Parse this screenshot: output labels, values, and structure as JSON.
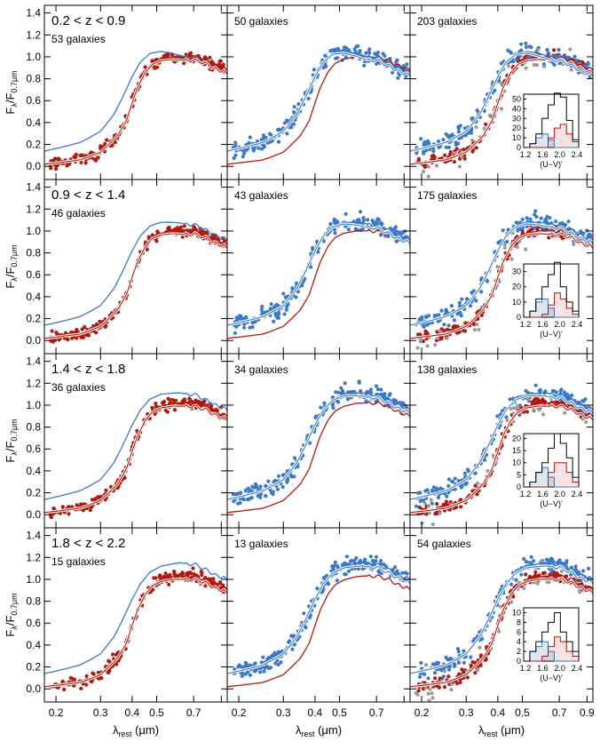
{
  "colors": {
    "red": "#B2180E",
    "blue": "#3A78C9",
    "gray": "#9A9A9A",
    "black": "#000000"
  },
  "chart_data": {
    "type": "scatter",
    "title": "",
    "xlabel": "λ_rest (μm)",
    "ylabel": "F_λ/F_0.7μm",
    "xlabel_parts": {
      "lambda": "λ",
      "sub": "rest",
      "unit": " (μm)"
    },
    "ylabel_parts": {
      "main": "F",
      "sub1": "λ",
      "slash": "/F",
      "sub2": "0.7μm"
    },
    "xlim": [
      0.18,
      0.95
    ],
    "ylim": [
      -0.12,
      1.47
    ],
    "x_ticks": [
      0.2,
      0.3,
      0.4,
      0.5,
      0.7,
      0.9
    ],
    "x_tick_labels": [
      "0.2",
      "0.3",
      "0.4",
      "0.5",
      "0.7",
      "0.9"
    ],
    "x_tick_labels_inner": [
      "0.2",
      "0.3",
      "0.4",
      "0.5",
      "0.7"
    ],
    "y_ticks": [
      0.0,
      0.2,
      0.4,
      0.6,
      0.8,
      1.0,
      1.2,
      1.4
    ],
    "y_tick_labels": [
      "0.0",
      "0.2",
      "0.4",
      "0.6",
      "0.8",
      "1.0",
      "1.2",
      "1.4"
    ],
    "template_red": [
      [
        0.18,
        0.02
      ],
      [
        0.25,
        0.06
      ],
      [
        0.3,
        0.13
      ],
      [
        0.35,
        0.28
      ],
      [
        0.38,
        0.42
      ],
      [
        0.4,
        0.58
      ],
      [
        0.42,
        0.72
      ],
      [
        0.45,
        0.86
      ],
      [
        0.48,
        0.94
      ],
      [
        0.52,
        0.98
      ],
      [
        0.58,
        1.0
      ],
      [
        0.65,
        1.0
      ],
      [
        0.7,
        1.0
      ],
      [
        0.78,
        0.97
      ],
      [
        0.85,
        0.92
      ],
      [
        0.95,
        0.88
      ]
    ],
    "template_blue": [
      [
        0.18,
        0.14
      ],
      [
        0.25,
        0.22
      ],
      [
        0.3,
        0.32
      ],
      [
        0.34,
        0.48
      ],
      [
        0.37,
        0.65
      ],
      [
        0.4,
        0.82
      ],
      [
        0.43,
        0.95
      ],
      [
        0.47,
        1.03
      ],
      [
        0.52,
        1.05
      ],
      [
        0.58,
        1.03
      ],
      [
        0.65,
        1.0
      ],
      [
        0.7,
        1.0
      ],
      [
        0.78,
        0.95
      ],
      [
        0.85,
        0.9
      ],
      [
        0.95,
        0.86
      ]
    ],
    "rows": [
      {
        "z_label": "0.2 < z < 0.9",
        "panels": [
          {
            "label": "53 galaxies",
            "points": [
              "red"
            ],
            "hist": null
          },
          {
            "label": "50 galaxies",
            "points": [
              "blue"
            ],
            "hist": null
          },
          {
            "label": "203 galaxies",
            "points": [
              "red",
              "blue",
              "gray"
            ],
            "hist": {
              "xlabel": "(U−V)'",
              "xticks": [
                "1.2",
                "1.6",
                "2.0",
                "2.4"
              ],
              "yticks": [
                "0",
                "10",
                "20",
                "30",
                "40",
                "50"
              ],
              "ymax": 55,
              "all": [
                0,
                4,
                14,
                30,
                44,
                56,
                52,
                28,
                8
              ],
              "blue": [
                0,
                4,
                10,
                14,
                8,
                0,
                0,
                0,
                0
              ],
              "red": [
                0,
                0,
                0,
                0,
                10,
                20,
                24,
                14,
                6
              ]
            }
          }
        ]
      },
      {
        "z_label": "0.9 < z < 1.4",
        "panels": [
          {
            "label": "46 galaxies",
            "points": [
              "red"
            ],
            "hist": null
          },
          {
            "label": "43 galaxies",
            "points": [
              "blue"
            ],
            "hist": null
          },
          {
            "label": "175 galaxies",
            "points": [
              "red",
              "blue",
              "gray"
            ],
            "hist": {
              "xlabel": "(U−V)'",
              "xticks": [
                "1.2",
                "1.6",
                "2.0",
                "2.4"
              ],
              "yticks": [
                "0",
                "10",
                "20",
                "30"
              ],
              "ymax": 35,
              "all": [
                0,
                4,
                12,
                20,
                28,
                36,
                20,
                10,
                4
              ],
              "blue": [
                0,
                4,
                10,
                12,
                6,
                0,
                0,
                0,
                0
              ],
              "red": [
                0,
                0,
                0,
                2,
                8,
                16,
                12,
                6,
                2
              ]
            }
          }
        ]
      },
      {
        "z_label": "1.4 < z < 1.8",
        "panels": [
          {
            "label": "36 galaxies",
            "points": [
              "red"
            ],
            "hist": null
          },
          {
            "label": "34 galaxies",
            "points": [
              "blue"
            ],
            "hist": null
          },
          {
            "label": "138 galaxies",
            "points": [
              "red",
              "blue",
              "gray"
            ],
            "hist": {
              "xlabel": "(U−V)'",
              "xticks": [
                "1.2",
                "1.6",
                "2.0",
                "2.4"
              ],
              "yticks": [
                "0",
                "5",
                "10",
                "15",
                "20"
              ],
              "ymax": 22,
              "all": [
                0,
                2,
                6,
                10,
                16,
                22,
                18,
                12,
                4
              ],
              "blue": [
                0,
                2,
                6,
                8,
                4,
                0,
                0,
                0,
                0
              ],
              "red": [
                0,
                0,
                0,
                0,
                6,
                10,
                10,
                6,
                2
              ]
            }
          }
        ]
      },
      {
        "z_label": "1.8 < z < 2.2",
        "panels": [
          {
            "label": "15 galaxies",
            "points": [
              "red"
            ],
            "hist": null
          },
          {
            "label": "13 galaxies",
            "points": [
              "blue"
            ],
            "hist": null
          },
          {
            "label": "54 galaxies",
            "points": [
              "red",
              "blue",
              "gray"
            ],
            "hist": {
              "xlabel": "(U−V)'",
              "xticks": [
                "1.2",
                "1.6",
                "2.0",
                "2.4"
              ],
              "yticks": [
                "0",
                "2",
                "4",
                "6",
                "8",
                "10"
              ],
              "ymax": 11,
              "all": [
                0,
                2,
                4,
                6,
                8,
                10,
                6,
                4,
                2
              ],
              "blue": [
                0,
                2,
                3,
                4,
                2,
                0,
                0,
                0,
                0
              ],
              "red": [
                0,
                0,
                0,
                1,
                3,
                5,
                4,
                2,
                1
              ]
            }
          }
        ]
      }
    ]
  }
}
